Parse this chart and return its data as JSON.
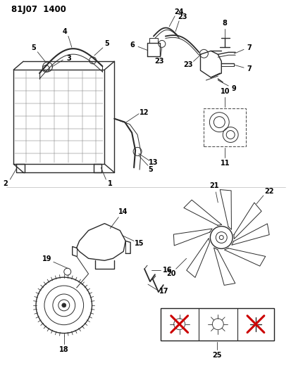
{
  "title": "81J07  1400",
  "bg_color": "#ffffff",
  "line_color": "#2a2a2a",
  "fig_width": 4.14,
  "fig_height": 5.33,
  "dpi": 100
}
